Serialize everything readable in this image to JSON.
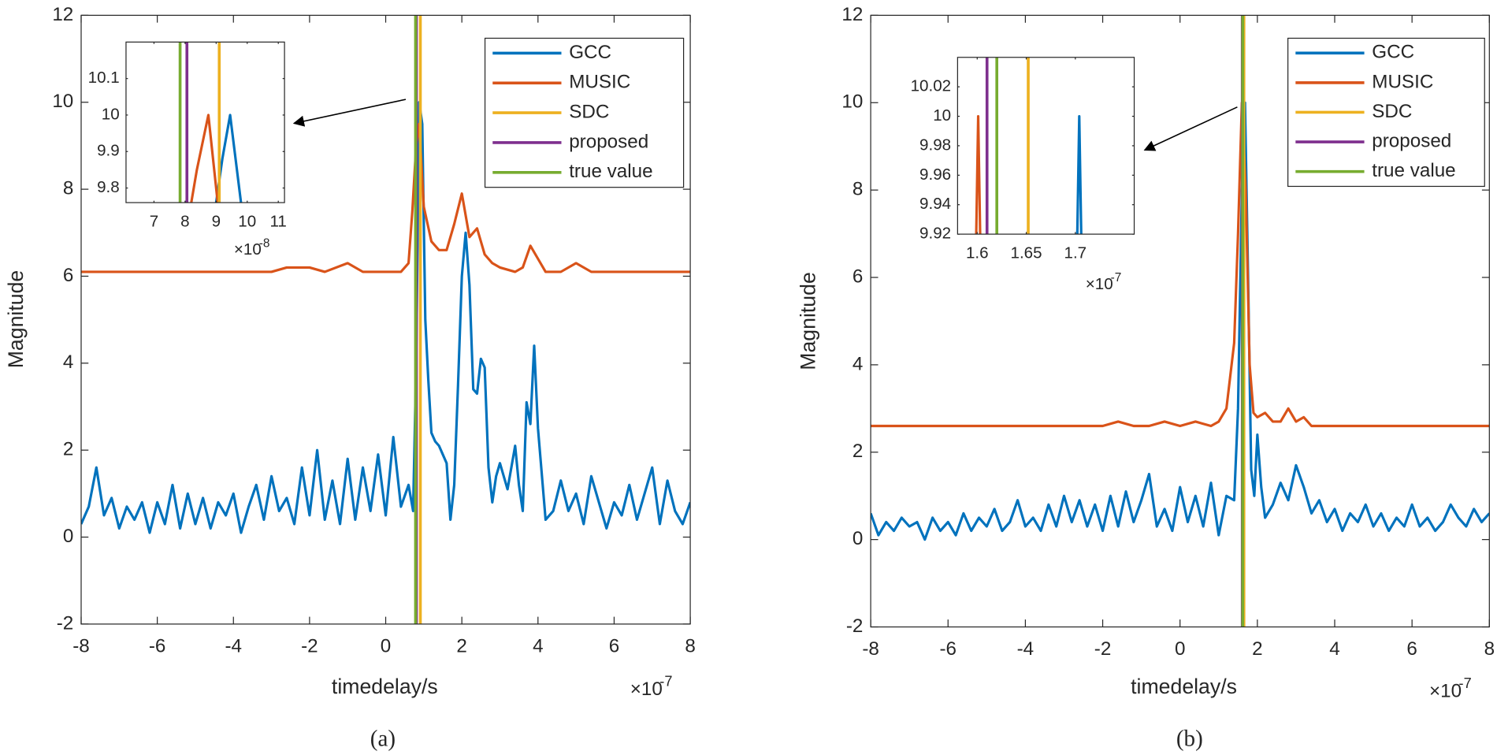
{
  "chart_data": [
    {
      "type": "line",
      "xlabel": "timedelay/s",
      "ylabel": "Magnitude",
      "caption": "(a)",
      "x_multiplier": "×10",
      "x_exponent": "-7",
      "xlim": [
        -8,
        8
      ],
      "ylim": [
        -2,
        12
      ],
      "xticks": [
        -8,
        -6,
        -4,
        -2,
        0,
        2,
        4,
        6,
        8
      ],
      "yticks": [
        -2,
        0,
        2,
        4,
        6,
        8,
        10,
        12
      ],
      "series": [
        {
          "name": "GCC",
          "color": "#0072BD",
          "x": [
            -8,
            -7.8,
            -7.6,
            -7.4,
            -7.2,
            -7,
            -6.8,
            -6.6,
            -6.4,
            -6.2,
            -6,
            -5.8,
            -5.6,
            -5.4,
            -5.2,
            -5,
            -4.8,
            -4.6,
            -4.4,
            -4.2,
            -4,
            -3.8,
            -3.6,
            -3.4,
            -3.2,
            -3,
            -2.8,
            -2.6,
            -2.4,
            -2.2,
            -2,
            -1.8,
            -1.6,
            -1.4,
            -1.2,
            -1,
            -0.8,
            -0.6,
            -0.4,
            -0.2,
            0,
            0.2,
            0.4,
            0.6,
            0.72,
            0.8,
            0.88,
            0.96,
            1.04,
            1.12,
            1.2,
            1.3,
            1.4,
            1.5,
            1.6,
            1.7,
            1.8,
            1.9,
            2.0,
            2.1,
            2.2,
            2.3,
            2.4,
            2.5,
            2.6,
            2.7,
            2.8,
            2.9,
            3.0,
            3.2,
            3.4,
            3.5,
            3.6,
            3.7,
            3.8,
            3.9,
            4.0,
            4.2,
            4.4,
            4.6,
            4.8,
            5.0,
            5.2,
            5.4,
            5.6,
            5.8,
            6,
            6.2,
            6.4,
            6.6,
            6.8,
            7.0,
            7.2,
            7.4,
            7.6,
            7.8,
            8
          ],
          "values": [
            0.3,
            0.7,
            1.6,
            0.5,
            0.9,
            0.2,
            0.7,
            0.4,
            0.8,
            0.1,
            0.8,
            0.3,
            1.2,
            0.2,
            1.0,
            0.3,
            0.9,
            0.2,
            0.8,
            0.5,
            1.0,
            0.1,
            0.7,
            1.2,
            0.4,
            1.4,
            0.6,
            0.9,
            0.3,
            1.6,
            0.5,
            2.0,
            0.4,
            1.3,
            0.3,
            1.8,
            0.4,
            1.6,
            0.6,
            1.9,
            0.5,
            2.3,
            0.7,
            1.2,
            0.6,
            4,
            10,
            9.5,
            5,
            3.6,
            2.4,
            2.2,
            2.1,
            1.9,
            1.7,
            0.4,
            1.2,
            3.5,
            6.0,
            7.0,
            5.8,
            3.4,
            3.3,
            4.1,
            3.9,
            1.6,
            0.8,
            1.4,
            1.7,
            1.1,
            2.1,
            1.2,
            0.6,
            3.1,
            2.6,
            4.4,
            2.5,
            0.4,
            0.6,
            1.3,
            0.6,
            1.0,
            0.3,
            1.4,
            0.8,
            0.2,
            0.8,
            0.5,
            1.2,
            0.4,
            1.0,
            1.6,
            0.3,
            1.3,
            0.6,
            0.3,
            0.8
          ]
        },
        {
          "name": "MUSIC",
          "color": "#D95319",
          "x": [
            -8,
            -6,
            -4,
            -3,
            -2.6,
            -2,
            -1.6,
            -1,
            -0.6,
            0,
            0.4,
            0.6,
            0.7,
            0.8,
            0.88,
            1.0,
            1.2,
            1.4,
            1.6,
            1.8,
            2.0,
            2.2,
            2.4,
            2.6,
            2.8,
            3.0,
            3.4,
            3.6,
            3.8,
            4.0,
            4.2,
            4.6,
            5.0,
            5.4,
            6,
            8
          ],
          "values": [
            6.1,
            6.1,
            6.1,
            6.1,
            6.2,
            6.2,
            6.1,
            6.3,
            6.1,
            6.1,
            6.1,
            6.3,
            7.5,
            9.0,
            9.5,
            7.6,
            6.8,
            6.6,
            6.6,
            7.2,
            7.9,
            6.9,
            7.1,
            6.5,
            6.3,
            6.2,
            6.1,
            6.2,
            6.7,
            6.4,
            6.1,
            6.1,
            6.3,
            6.1,
            6.1,
            6.1
          ]
        },
        {
          "name": "SDC",
          "color": "#EDB120",
          "xline": 0.91
        },
        {
          "name": "proposed",
          "color": "#7E2F8E",
          "xline": 0.806
        },
        {
          "name": "true value",
          "color": "#77AC30",
          "xline": 0.784
        }
      ]
    },
    {
      "type": "line",
      "xlabel": "timedelay/s",
      "ylabel": "Magnitude",
      "caption": "(b)",
      "x_multiplier": "×10",
      "x_exponent": "-7",
      "xlim": [
        -8,
        8
      ],
      "ylim": [
        -2,
        12
      ],
      "xticks": [
        -8,
        -6,
        -4,
        -2,
        0,
        2,
        4,
        6,
        8
      ],
      "yticks": [
        -2,
        0,
        2,
        4,
        6,
        8,
        10,
        12
      ],
      "series": [
        {
          "name": "GCC",
          "color": "#0072BD",
          "x": [
            -8,
            -7.8,
            -7.6,
            -7.4,
            -7.2,
            -7,
            -6.8,
            -6.6,
            -6.4,
            -6.2,
            -6,
            -5.8,
            -5.6,
            -5.4,
            -5.2,
            -5,
            -4.8,
            -4.6,
            -4.4,
            -4.2,
            -4,
            -3.8,
            -3.6,
            -3.4,
            -3.2,
            -3,
            -2.8,
            -2.6,
            -2.4,
            -2.2,
            -2,
            -1.8,
            -1.6,
            -1.4,
            -1.2,
            -1,
            -0.8,
            -0.6,
            -0.4,
            -0.2,
            0,
            0.2,
            0.4,
            0.6,
            0.8,
            1.0,
            1.2,
            1.4,
            1.5,
            1.6,
            1.68,
            1.76,
            1.84,
            1.92,
            2.0,
            2.1,
            2.2,
            2.4,
            2.6,
            2.8,
            3.0,
            3.2,
            3.4,
            3.6,
            3.8,
            4.0,
            4.2,
            4.4,
            4.6,
            4.8,
            5.0,
            5.2,
            5.4,
            5.6,
            5.8,
            6.0,
            6.2,
            6.4,
            6.6,
            6.8,
            7.0,
            7.2,
            7.4,
            7.6,
            7.8,
            8
          ],
          "values": [
            0.6,
            0.1,
            0.4,
            0.2,
            0.5,
            0.3,
            0.4,
            0.0,
            0.5,
            0.2,
            0.4,
            0.1,
            0.6,
            0.2,
            0.5,
            0.3,
            0.7,
            0.2,
            0.4,
            0.9,
            0.3,
            0.5,
            0.2,
            0.8,
            0.3,
            1.0,
            0.4,
            0.9,
            0.3,
            0.8,
            0.2,
            1.0,
            0.3,
            1.1,
            0.4,
            0.9,
            1.5,
            0.3,
            0.7,
            0.2,
            1.2,
            0.4,
            1.0,
            0.3,
            1.3,
            0.1,
            1.0,
            0.9,
            3,
            8,
            10,
            6,
            1.6,
            1.0,
            2.4,
            1.2,
            0.5,
            0.8,
            1.3,
            0.9,
            1.7,
            1.2,
            0.6,
            0.9,
            0.4,
            0.7,
            0.2,
            0.6,
            0.4,
            0.8,
            0.3,
            0.6,
            0.2,
            0.5,
            0.3,
            0.8,
            0.3,
            0.5,
            0.2,
            0.4,
            0.8,
            0.5,
            0.3,
            0.7,
            0.4,
            0.6
          ]
        },
        {
          "name": "MUSIC",
          "color": "#D95319",
          "x": [
            -8,
            -4,
            -2,
            -1.6,
            -1.2,
            -0.8,
            -0.4,
            0,
            0.4,
            0.8,
            1.0,
            1.2,
            1.4,
            1.5,
            1.6,
            1.7,
            1.8,
            1.9,
            2.0,
            2.2,
            2.4,
            2.6,
            2.8,
            3.0,
            3.2,
            3.4,
            3.6,
            4,
            8
          ],
          "values": [
            2.6,
            2.6,
            2.6,
            2.7,
            2.6,
            2.6,
            2.7,
            2.6,
            2.7,
            2.6,
            2.7,
            3.0,
            4.5,
            7,
            10,
            8,
            4,
            2.9,
            2.8,
            2.9,
            2.7,
            2.7,
            3.0,
            2.7,
            2.8,
            2.6,
            2.6,
            2.6,
            2.6
          ]
        },
        {
          "name": "SDC",
          "color": "#EDB120",
          "xline": 1.652
        },
        {
          "name": "proposed",
          "color": "#7E2F8E",
          "xline": 1.61
        },
        {
          "name": "true value",
          "color": "#77AC30",
          "xline": 1.62
        }
      ]
    },
    {
      "type": "line",
      "x_multiplier": "×10",
      "x_exponent": "-8",
      "xlim": [
        6.1,
        11.2
      ],
      "ylim": [
        9.76,
        10.2
      ],
      "xticks": [
        7,
        8,
        9,
        10,
        11
      ],
      "yticks": [
        9.8,
        9.9,
        10,
        10.1
      ],
      "series": [
        {
          "color": "#0072BD",
          "x": [
            9.0,
            9.2,
            9.45,
            9.8
          ],
          "values": [
            9.76,
            9.88,
            10.0,
            9.76
          ]
        },
        {
          "color": "#D95319",
          "x": [
            8.2,
            8.38,
            8.75,
            9.05
          ],
          "values": [
            9.76,
            9.85,
            10.0,
            9.76
          ]
        },
        {
          "color": "#EDB120",
          "xline": 9.1
        },
        {
          "color": "#7E2F8E",
          "xline": 8.06
        },
        {
          "color": "#77AC30",
          "xline": 7.84
        }
      ]
    },
    {
      "type": "line",
      "x_multiplier": "×10",
      "x_exponent": "-7",
      "xlim": [
        1.58,
        1.76
      ],
      "ylim": [
        9.92,
        10.04
      ],
      "xticks": [
        1.6,
        1.65,
        1.7
      ],
      "yticks": [
        9.92,
        9.94,
        9.96,
        9.98,
        10,
        10.02
      ],
      "series": [
        {
          "color": "#0072BD",
          "x": [
            1.702,
            1.704,
            1.706
          ],
          "values": [
            9.92,
            10,
            9.92
          ]
        },
        {
          "color": "#D95319",
          "x": [
            1.599,
            1.601,
            1.603
          ],
          "values": [
            9.92,
            10,
            9.92
          ]
        },
        {
          "color": "#EDB120",
          "xline": 1.652
        },
        {
          "color": "#7E2F8E",
          "xline": 1.61
        },
        {
          "color": "#77AC30",
          "xline": 1.62
        }
      ]
    }
  ]
}
